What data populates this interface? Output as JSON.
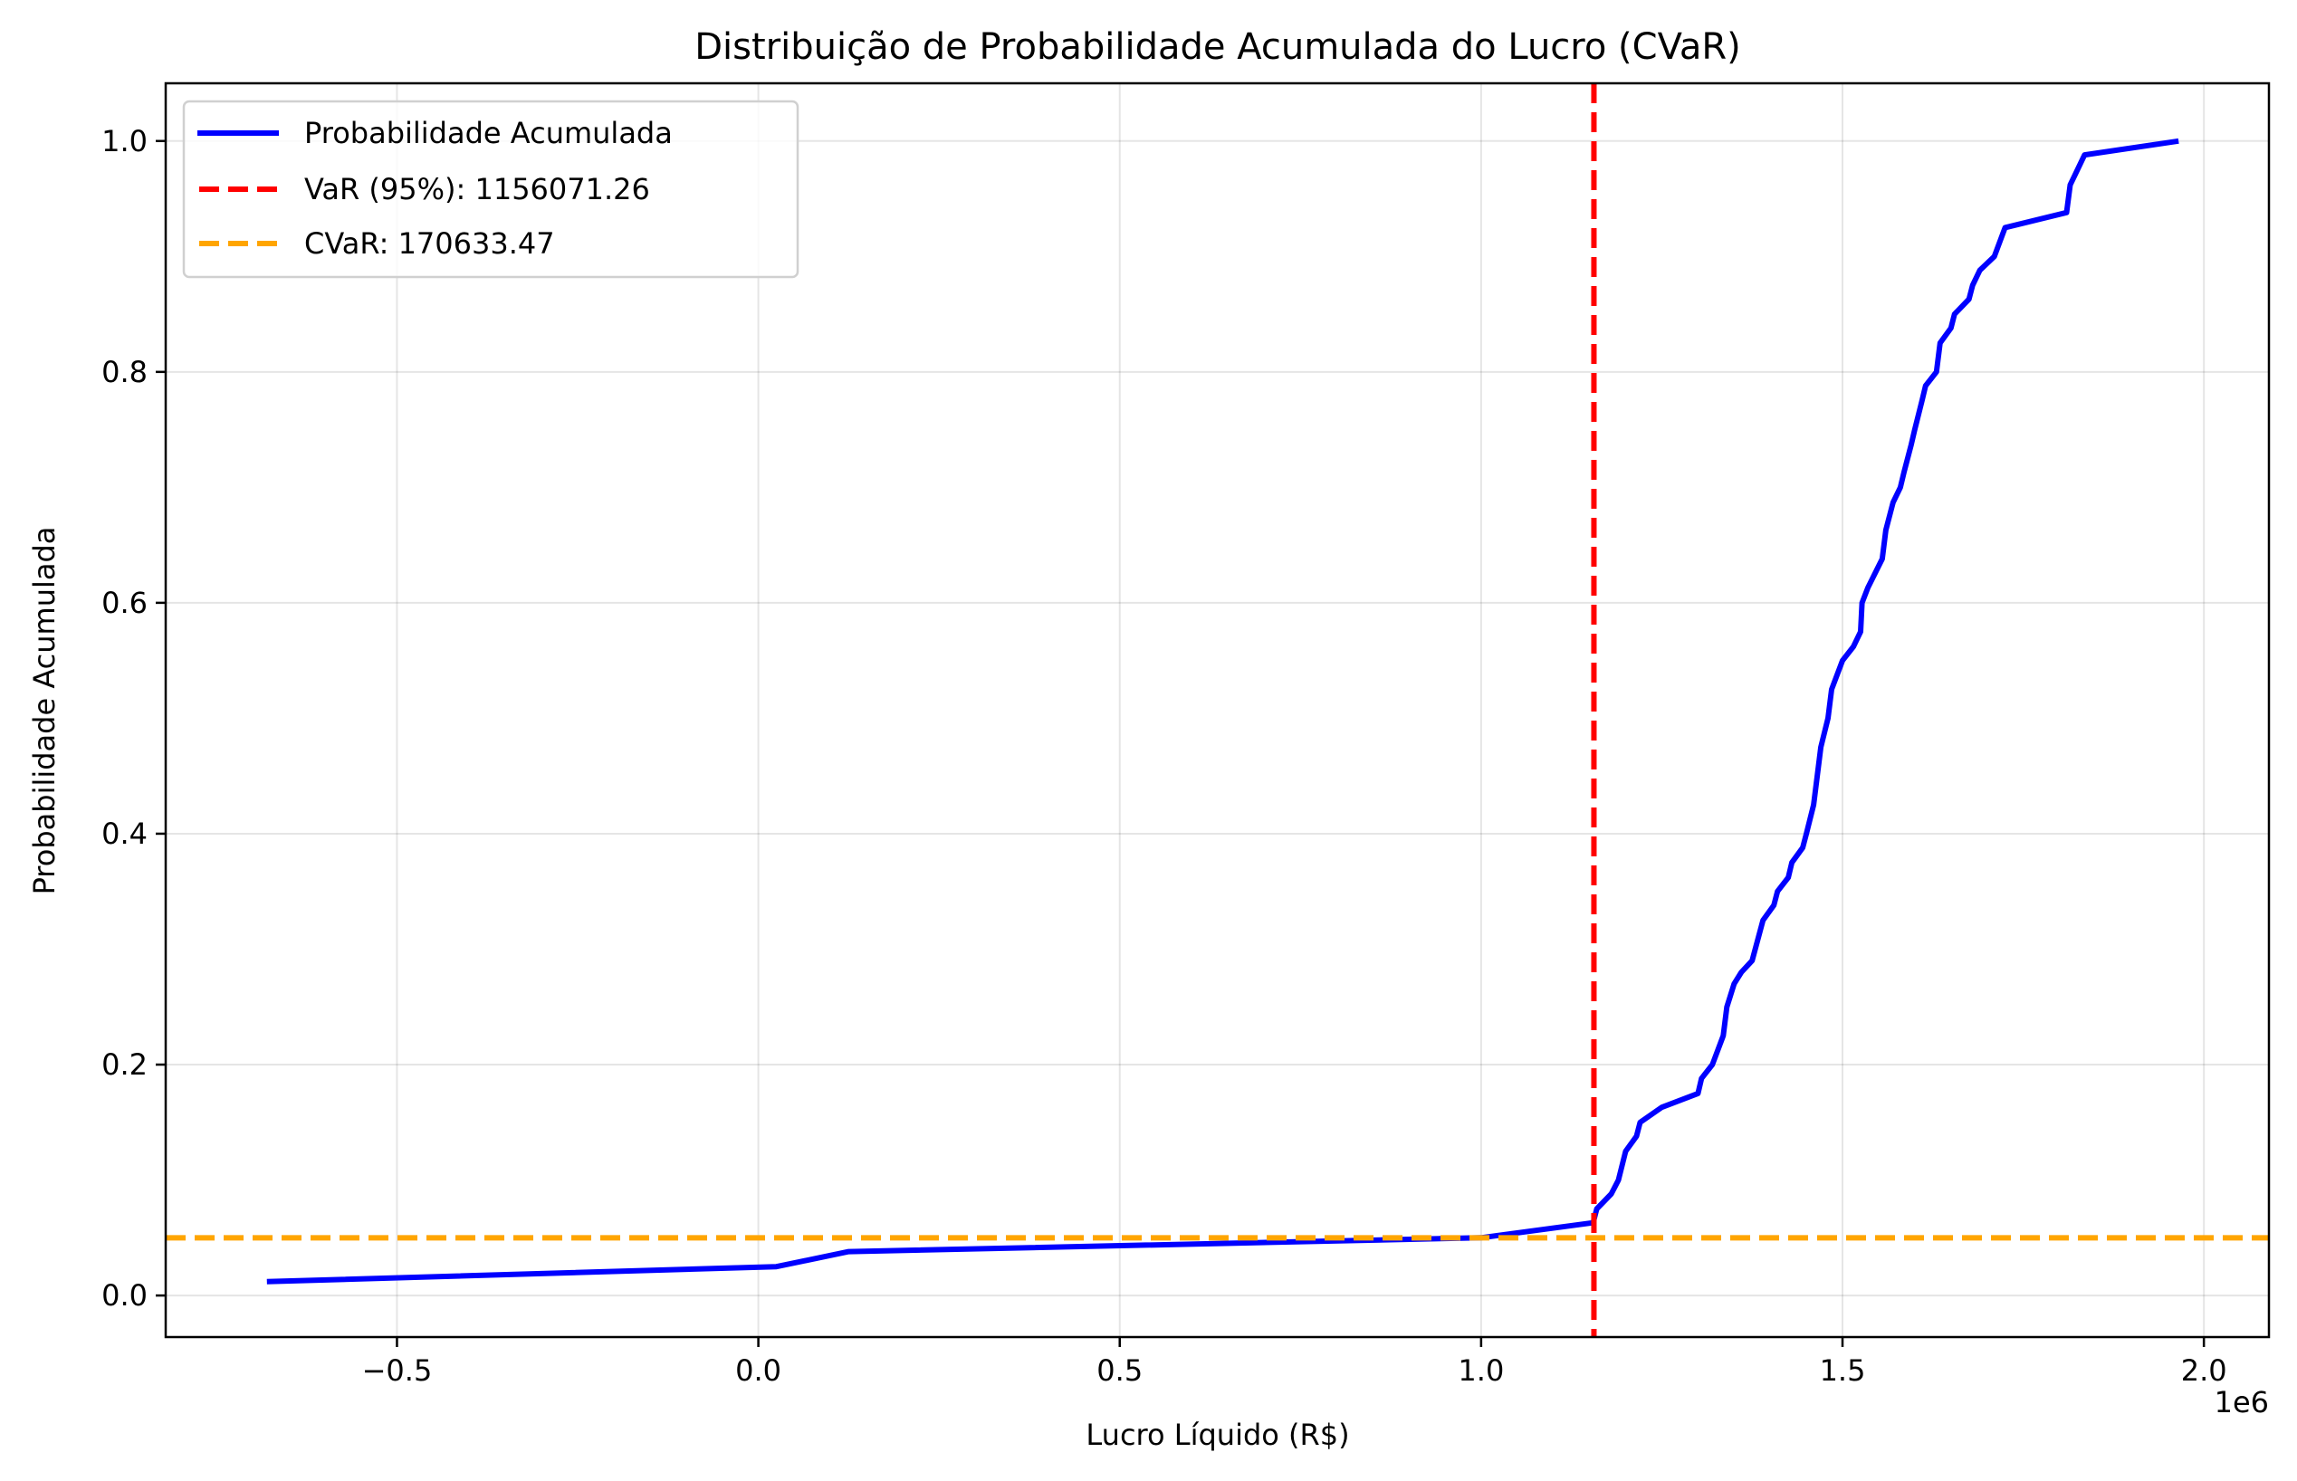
{
  "chart_data": {
    "type": "line",
    "title": "Distribuição de Probabilidade Acumulada do Lucro (CVaR)",
    "xlabel": "Lucro Líquido (R$)",
    "ylabel": "Probabilidade Acumulada",
    "x_offset_label": "1e6",
    "xlim": [
      -820000,
      2090000
    ],
    "ylim": [
      -0.036,
      1.05
    ],
    "xticks": [
      -500000,
      0,
      500000,
      1000000,
      1500000,
      2000000
    ],
    "xtick_labels": [
      "−0.5",
      "0.0",
      "0.5",
      "1.0",
      "1.5",
      "2.0"
    ],
    "yticks": [
      0,
      0.2,
      0.4,
      0.6,
      0.8,
      1.0
    ],
    "ytick_labels": [
      "0.0",
      "0.2",
      "0.4",
      "0.6",
      "0.8",
      "1.0"
    ],
    "grid": true,
    "legend_position": "top-left",
    "series": [
      {
        "name": "Probabilidade Acumulada",
        "color": "#0000ff",
        "style": "solid",
        "x": [
          -680000,
          25000,
          125000,
          1000000,
          1155000,
          1160000,
          1180000,
          1190000,
          1200000,
          1215000,
          1220000,
          1250000,
          1300000,
          1305000,
          1320000,
          1335000,
          1340000,
          1350000,
          1360000,
          1375000,
          1390000,
          1405000,
          1410000,
          1425000,
          1430000,
          1445000,
          1450000,
          1460000,
          1465000,
          1470000,
          1480000,
          1485000,
          1500000,
          1515000,
          1525000,
          1527000,
          1535000,
          1555000,
          1560000,
          1570000,
          1580000,
          1585000,
          1595000,
          1600000,
          1610000,
          1615000,
          1630000,
          1635000,
          1650000,
          1655000,
          1675000,
          1680000,
          1690000,
          1710000,
          1725000,
          1810000,
          1815000,
          1825000,
          1835000,
          1965000
        ],
        "y": [
          0.012,
          0.025,
          0.038,
          0.05,
          0.063,
          0.075,
          0.088,
          0.1,
          0.125,
          0.138,
          0.15,
          0.163,
          0.175,
          0.188,
          0.2,
          0.225,
          0.25,
          0.27,
          0.28,
          0.29,
          0.325,
          0.338,
          0.35,
          0.362,
          0.375,
          0.388,
          0.4,
          0.425,
          0.45,
          0.475,
          0.5,
          0.525,
          0.55,
          0.562,
          0.575,
          0.6,
          0.613,
          0.638,
          0.663,
          0.687,
          0.7,
          0.713,
          0.737,
          0.75,
          0.775,
          0.788,
          0.8,
          0.825,
          0.838,
          0.85,
          0.863,
          0.875,
          0.888,
          0.9,
          0.925,
          0.938,
          0.962,
          0.975,
          0.988,
          1.0
        ]
      },
      {
        "name": "VaR (95%): 1156071.26",
        "color": "#ff0000",
        "style": "dashed",
        "orientation": "vertical",
        "x_value": 1156071.26
      },
      {
        "name": "CVaR: 170633.47",
        "color": "#ffa500",
        "style": "dashed",
        "orientation": "horizontal",
        "y_value": 0.05
      }
    ]
  }
}
